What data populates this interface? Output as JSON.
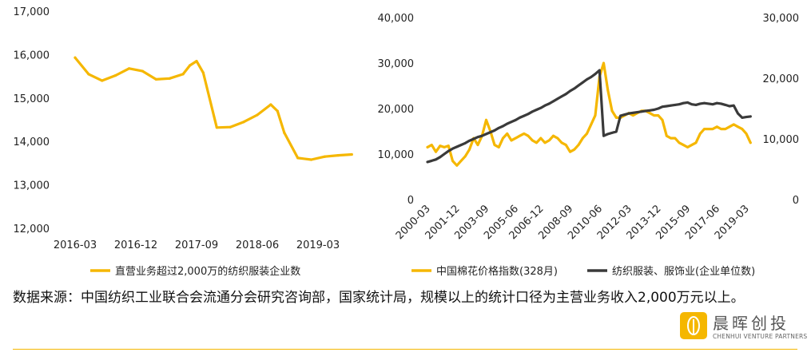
{
  "colors": {
    "accent": "#f5b700",
    "dark": "#3a3a3a"
  },
  "chart_data": [
    {
      "type": "line",
      "y_tick_labels": [
        "17,000",
        "16,000",
        "15,000",
        "14,000",
        "13,000",
        "12,000"
      ],
      "x_tick_labels": [
        "2016-03",
        "2016-12",
        "2017-09",
        "2018-06",
        "2019-03"
      ],
      "ylim": [
        12000,
        17000
      ],
      "grid": false,
      "legend_position": "bottom",
      "series": [
        {
          "name": "直营业务超过2,000万的纺织服装企业数",
          "color": "#f5b700",
          "x": [
            "2016-03",
            "2016-05",
            "2016-07",
            "2016-09",
            "2016-11",
            "2017-01",
            "2017-03",
            "2017-05",
            "2017-07",
            "2017-08",
            "2017-09",
            "2017-10",
            "2017-12",
            "2018-02",
            "2018-04",
            "2018-06",
            "2018-08",
            "2018-09",
            "2018-10",
            "2018-12",
            "2019-02",
            "2019-04",
            "2019-06",
            "2019-08"
          ],
          "values": [
            15930,
            15550,
            15400,
            15520,
            15680,
            15620,
            15430,
            15450,
            15550,
            15750,
            15850,
            15580,
            14320,
            14330,
            14450,
            14610,
            14850,
            14700,
            14200,
            13620,
            13580,
            13650,
            13680,
            13700
          ]
        }
      ]
    },
    {
      "type": "line",
      "y_left_tick_labels": [
        "40,000",
        "30,000",
        "20,000",
        "10,000",
        "0"
      ],
      "y_right_tick_labels": [
        "30,000",
        "20,000",
        "10,000",
        "0"
      ],
      "x_tick_labels": [
        "2000-03",
        "2001-12",
        "2003-09",
        "2005-06",
        "2006-12",
        "2008-09",
        "2010-06",
        "2012-03",
        "2013-12",
        "2015-09",
        "2017-06",
        "2019-03"
      ],
      "ylim_left": [
        0,
        40000
      ],
      "ylim_right": [
        0,
        30000
      ],
      "grid": false,
      "legend_position": "bottom",
      "series": [
        {
          "name": "中国棉花价格指数(328月)",
          "axis": "left",
          "color": "#f5b700",
          "x": [
            "2000-03",
            "2000-06",
            "2000-09",
            "2000-12",
            "2001-03",
            "2001-06",
            "2001-09",
            "2001-12",
            "2002-03",
            "2002-06",
            "2002-09",
            "2002-12",
            "2003-03",
            "2003-06",
            "2003-09",
            "2003-12",
            "2004-03",
            "2004-06",
            "2004-09",
            "2004-12",
            "2005-03",
            "2005-06",
            "2005-09",
            "2005-12",
            "2006-03",
            "2006-06",
            "2006-09",
            "2006-12",
            "2007-03",
            "2007-06",
            "2007-09",
            "2007-12",
            "2008-03",
            "2008-06",
            "2008-09",
            "2008-12",
            "2009-03",
            "2009-06",
            "2009-09",
            "2009-12",
            "2010-03",
            "2010-06",
            "2010-09",
            "2010-12",
            "2011-03",
            "2011-06",
            "2011-09",
            "2011-12",
            "2012-03",
            "2012-06",
            "2012-09",
            "2012-12",
            "2013-03",
            "2013-06",
            "2013-09",
            "2013-12",
            "2014-03",
            "2014-06",
            "2014-09",
            "2014-12",
            "2015-03",
            "2015-06",
            "2015-09",
            "2015-12",
            "2016-03",
            "2016-06",
            "2016-09",
            "2016-12",
            "2017-03",
            "2017-06",
            "2017-09",
            "2017-12",
            "2018-03",
            "2018-06",
            "2018-09",
            "2018-12",
            "2019-03",
            "2019-06"
          ],
          "values": [
            11500,
            12000,
            10500,
            11800,
            11500,
            11800,
            8500,
            7500,
            8500,
            9500,
            11000,
            13500,
            12000,
            14000,
            17500,
            15000,
            12000,
            11500,
            13500,
            14500,
            13000,
            13500,
            14000,
            14500,
            14000,
            13000,
            12500,
            13500,
            12500,
            13000,
            14000,
            13500,
            12500,
            12000,
            10500,
            11000,
            12000,
            13500,
            14500,
            16500,
            18500,
            27000,
            30000,
            24000,
            19500,
            18000,
            18000,
            18500,
            19000,
            18500,
            19000,
            19500,
            19500,
            19000,
            18500,
            18500,
            17500,
            14000,
            13500,
            13500,
            12500,
            12000,
            11500,
            12000,
            12500,
            14500,
            15500,
            15500,
            15500,
            16000,
            15500,
            15500,
            16000,
            16500,
            16000,
            15500,
            14500,
            12500
          ]
        },
        {
          "name": "纺织服装、服饰业(企业单位数)",
          "axis": "right",
          "color": "#3a3a3a",
          "x": [
            "2000-03",
            "2000-06",
            "2000-09",
            "2000-12",
            "2001-03",
            "2001-06",
            "2001-09",
            "2001-12",
            "2002-03",
            "2002-06",
            "2002-09",
            "2002-12",
            "2003-03",
            "2003-06",
            "2003-09",
            "2003-12",
            "2004-03",
            "2004-06",
            "2004-09",
            "2004-12",
            "2005-03",
            "2005-06",
            "2005-09",
            "2005-12",
            "2006-03",
            "2006-06",
            "2006-09",
            "2006-12",
            "2007-03",
            "2007-06",
            "2007-09",
            "2007-12",
            "2008-03",
            "2008-06",
            "2008-09",
            "2008-12",
            "2009-03",
            "2009-06",
            "2009-09",
            "2009-12",
            "2010-03",
            "2010-06",
            "2010-09",
            "2010-12",
            "2011-03",
            "2011-06",
            "2011-09",
            "2011-12",
            "2012-03",
            "2012-06",
            "2012-09",
            "2012-12",
            "2013-03",
            "2013-06",
            "2013-09",
            "2013-12",
            "2014-03",
            "2014-06",
            "2014-09",
            "2014-12",
            "2015-03",
            "2015-06",
            "2015-09",
            "2015-12",
            "2016-03",
            "2016-06",
            "2016-09",
            "2016-12",
            "2017-03",
            "2017-06",
            "2017-09",
            "2017-12",
            "2018-03",
            "2018-06",
            "2018-09",
            "2018-12",
            "2019-03",
            "2019-06"
          ],
          "values": [
            6200,
            6400,
            6600,
            7000,
            7500,
            8000,
            8400,
            8700,
            9000,
            9300,
            9700,
            10000,
            10300,
            10500,
            10800,
            11100,
            11400,
            11800,
            12100,
            12500,
            12800,
            13100,
            13500,
            13800,
            14100,
            14500,
            14800,
            15100,
            15500,
            15800,
            16200,
            16600,
            17000,
            17400,
            17900,
            18300,
            18800,
            19300,
            19800,
            20200,
            20700,
            21300,
            10500,
            10800,
            11000,
            11200,
            13800,
            14000,
            14200,
            14300,
            14400,
            14500,
            14600,
            14700,
            14800,
            15000,
            15300,
            15400,
            15500,
            15600,
            15700,
            15900,
            16000,
            15700,
            15600,
            15800,
            15900,
            15800,
            15700,
            15900,
            15800,
            15600,
            15400,
            15500,
            14200,
            13500,
            13600,
            13700
          ]
        }
      ]
    }
  ],
  "source_note": "数据来源：中国纺织工业联合会流通分会研究咨询部，国家统计局，规模以上的统计口径为主营业务收入2,000万元以上。",
  "logo": {
    "name_cn": "晨晖创投",
    "name_en": "CHENHUI VENTURE PARTNERS"
  }
}
